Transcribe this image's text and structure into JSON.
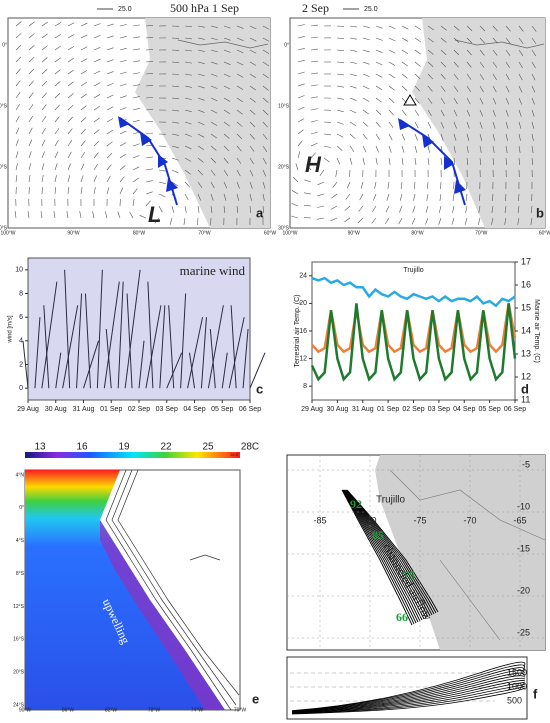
{
  "maps": {
    "a": {
      "header_scale": "25.0",
      "header_title": "500 hPa   1 Sep",
      "low": "L",
      "label": "a",
      "lats": [
        "0°",
        "10°S",
        "20°S",
        "30°S"
      ],
      "lons": [
        "100°W",
        "90°W",
        "80°W",
        "70°W",
        "60°W"
      ]
    },
    "b": {
      "header_date": "2 Sep",
      "header_scale": "25.0",
      "high": "H",
      "label": "b",
      "lats": [
        "0°",
        "10°S",
        "20°S",
        "30°S"
      ],
      "lons": [
        "100°W",
        "90°W",
        "80°W",
        "70°W",
        "60°W"
      ]
    },
    "e": {
      "colorbar": [
        "13",
        "16",
        "19",
        "22",
        "25",
        "28C"
      ],
      "cb_min": "13.4",
      "cb_max": "28.8",
      "annotation": "upwelling",
      "label": "e",
      "lats": [
        "4°N",
        "0°",
        "4°S",
        "8°S",
        "12°S",
        "16°S",
        "20°S",
        "24°S"
      ],
      "lons": [
        "90°W",
        "86°W",
        "82°W",
        "78°W",
        "74°W",
        "70°W"
      ]
    },
    "f": {
      "place": "Trujillo",
      "numbers": [
        "92",
        "85",
        "75",
        "66"
      ],
      "annotation": "channeled airflow",
      "label": "f",
      "lats": [
        "-5",
        "-10",
        "-15",
        "-20",
        "-25"
      ],
      "lons": [
        "-85",
        "-80",
        "-75",
        "-70",
        "-65"
      ],
      "heights": [
        "1500",
        "1000",
        "500"
      ]
    }
  },
  "chart_data": [
    {
      "type": "stick",
      "title": "marine wind",
      "y_label": "wind [m/s]",
      "label": "c",
      "color": "#2a2a40",
      "xlim": [
        0,
        8
      ],
      "xticks": [
        {
          "value": 0,
          "label": "29 Aug"
        },
        {
          "value": 1,
          "label": "30 Aug"
        },
        {
          "value": 2,
          "label": "31 Aug"
        },
        {
          "value": 3,
          "label": "01 Sep"
        },
        {
          "value": 4,
          "label": "02 Sep"
        },
        {
          "value": 5,
          "label": "03 Sep"
        },
        {
          "value": 6,
          "label": "04 Sep"
        },
        {
          "value": 7,
          "label": "05 Sep"
        },
        {
          "value": 8,
          "label": "06 Sep"
        }
      ],
      "ylim": [
        -1,
        11
      ],
      "yticks": [
        0,
        2,
        4,
        6,
        8,
        10
      ],
      "x": [
        0,
        0.25,
        0.5,
        0.75,
        1,
        1.25,
        1.5,
        1.75,
        2,
        2.25,
        2.5,
        2.75,
        3,
        3.25,
        3.5,
        3.75,
        4,
        4.25,
        4.5,
        4.75,
        5,
        5.25,
        5.5,
        5.75,
        6,
        6.25,
        6.5,
        6.75,
        7,
        7.25,
        7.5,
        7.75,
        8
      ],
      "values": [
        4,
        6,
        9,
        7,
        3,
        7,
        10,
        8,
        4,
        8,
        10,
        9,
        5,
        9,
        10,
        8,
        4,
        7,
        9,
        7,
        3,
        7,
        8,
        6,
        3,
        6,
        7,
        5,
        3,
        6,
        7,
        5,
        3
      ]
    },
    {
      "type": "line",
      "title": "Trujillo",
      "y_label": "Terrestrial air Temp. (C)",
      "y2_label": "Marine air Temp. (C)",
      "label": "d",
      "xlim": [
        0,
        8
      ],
      "xticks": [
        {
          "value": 0,
          "label": "29 Aug"
        },
        {
          "value": 1,
          "label": "30 Aug"
        },
        {
          "value": 2,
          "label": "31 Aug"
        },
        {
          "value": 3,
          "label": "01 Sep"
        },
        {
          "value": 4,
          "label": "02 Sep"
        },
        {
          "value": 5,
          "label": "03 Sep"
        },
        {
          "value": 6,
          "label": "04 Sep"
        },
        {
          "value": 7,
          "label": "05 Sep"
        },
        {
          "value": 8,
          "label": "06 Sep"
        }
      ],
      "ylim": [
        6,
        26
      ],
      "yticks": [
        8,
        12,
        16,
        20,
        24
      ],
      "y2lim": [
        11,
        17
      ],
      "y2ticks": [
        11,
        12,
        13,
        14,
        15,
        16,
        17
      ],
      "x": [
        0,
        0.25,
        0.5,
        0.75,
        1,
        1.25,
        1.5,
        1.75,
        2,
        2.25,
        2.5,
        2.75,
        3,
        3.25,
        3.5,
        3.75,
        4,
        4.25,
        4.5,
        4.75,
        5,
        5.25,
        5.5,
        5.75,
        6,
        6.25,
        6.5,
        6.75,
        7,
        7.25,
        7.5,
        7.75,
        8
      ],
      "series": [
        {
          "color": "#29abe2",
          "axis": "y2",
          "values": [
            16.3,
            16.2,
            16.3,
            16.1,
            16.2,
            16.0,
            16.1,
            15.9,
            15.9,
            15.5,
            15.8,
            15.6,
            15.5,
            15.7,
            15.5,
            15.4,
            15.6,
            15.5,
            15.4,
            15.5,
            15.3,
            15.5,
            15.3,
            15.4,
            15.4,
            15.3,
            15.5,
            15.2,
            15.3,
            15.1,
            15.4,
            15.3,
            15.5
          ]
        },
        {
          "color": "#f07f3c",
          "values": [
            14,
            13,
            13.5,
            19,
            14,
            13,
            13.5,
            19,
            14,
            13,
            13.5,
            19,
            14,
            13,
            13.5,
            19,
            14,
            13,
            13.5,
            19,
            14,
            13,
            13.5,
            19,
            14,
            13,
            13.5,
            19,
            14,
            13,
            14,
            20,
            15
          ]
        },
        {
          "color": "#1e7b2e",
          "values": [
            11,
            9,
            10,
            19,
            12,
            9,
            10,
            20,
            12,
            9,
            10,
            19,
            12,
            9,
            10,
            19,
            12,
            9,
            10,
            19,
            12,
            9,
            10,
            19,
            12,
            9,
            10,
            19,
            12,
            9,
            10,
            20,
            12
          ]
        }
      ]
    }
  ]
}
